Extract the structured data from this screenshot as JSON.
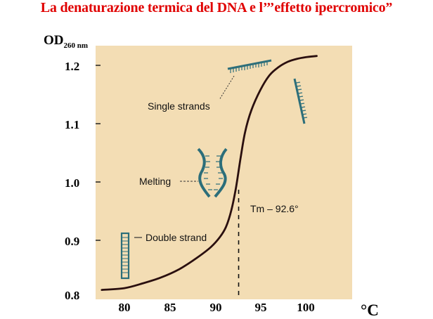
{
  "title": "La denaturazione termica del DNA e l’’’effetto ipercromico”",
  "chart_data": {
    "type": "line",
    "ylabel_main": "OD",
    "ylabel_sub": "260 nm",
    "xlabel": "°C",
    "xlim": [
      76,
      104
    ],
    "ylim": [
      0.8,
      1.25
    ],
    "x_ticks": [
      80,
      85,
      90,
      95,
      100
    ],
    "y_ticks": [
      "0.8",
      "0.9",
      "1.0",
      "1.1",
      "1.2"
    ],
    "series": [
      {
        "x": [
          77.5,
          80,
          82,
          84,
          86,
          88,
          89.5,
          90.5,
          91.2,
          91.8,
          92.3,
          92.8,
          93.3,
          94,
          95,
          96,
          97,
          98,
          99,
          100,
          101.2
        ],
        "y": [
          0.815,
          0.818,
          0.826,
          0.836,
          0.85,
          0.87,
          0.888,
          0.905,
          0.923,
          0.952,
          0.99,
          1.04,
          1.085,
          1.123,
          1.158,
          1.183,
          1.197,
          1.206,
          1.211,
          1.214,
          1.216
        ]
      }
    ],
    "tm": {
      "x": 92.6,
      "label": "Tm – 92.6°"
    },
    "annotations": {
      "single": "Single strands",
      "melting": "Melting",
      "double": "Double strand"
    },
    "plot_background": "#f3ddb4",
    "curve_color": "#2a0f0f",
    "strand_color": "#2c6e7a"
  }
}
